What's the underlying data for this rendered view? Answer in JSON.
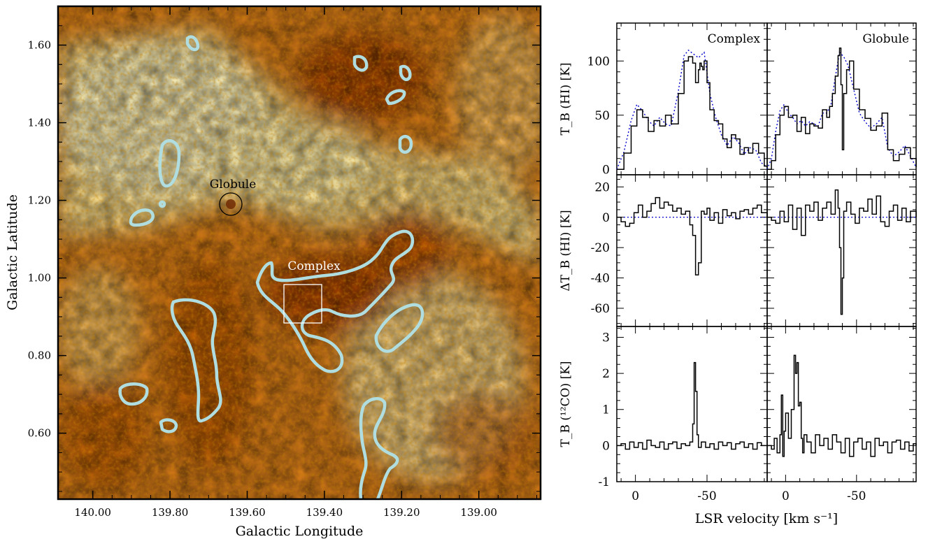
{
  "colors": {
    "map_dark": "#8a3000",
    "map_mid": "#e0801a",
    "map_light": "#fff3b0",
    "contour": "#b0dde0",
    "spectrum_line": "#000000",
    "model_line": "#0000cc"
  },
  "chart_data": [
    {
      "type": "heatmap",
      "title": "",
      "xlabel": "Galactic Longitude",
      "ylabel": "Galactic Latitude",
      "xlim": [
        140.09,
        138.84
      ],
      "ylim": [
        0.43,
        1.7
      ],
      "x_ticks": [
        "140.00",
        "139.80",
        "139.60",
        "139.40",
        "139.20",
        "139.00"
      ],
      "y_ticks": [
        "0.60",
        "0.80",
        "1.00",
        "1.20",
        "1.40",
        "1.60"
      ],
      "colormap": "dark brown (high absorption) to pale yellow (bright HI)",
      "annotations": [
        {
          "label": "Globule",
          "l": 139.64,
          "b": 1.19,
          "marker": "circle"
        },
        {
          "label": "Complex",
          "l": 139.45,
          "b": 0.92,
          "marker": "box",
          "box_l": [
            139.5,
            139.4
          ],
          "box_b": [
            0.83,
            0.98
          ]
        }
      ]
    },
    {
      "type": "line",
      "layout": "3 rows x 2 columns, shared axes",
      "xlabel": "LSR velocity [km s⁻¹]",
      "x_reversed": true,
      "xlim": [
        13,
        -92
      ],
      "x_ticks": [
        "0",
        "-50"
      ],
      "column_titles": [
        "Complex",
        "Globule"
      ],
      "rows": [
        {
          "ylabel": "T_B (HI) [K]",
          "ylim": [
            -5,
            135
          ],
          "y_ticks": [
            "0",
            "50",
            "100"
          ],
          "series_style": [
            "solid black: observed",
            "dotted blue: model"
          ],
          "panels": [
            {
              "column": "Complex",
              "observed": {
                "x": [
                  13,
                  8,
                  3,
                  -1,
                  -5,
                  -9,
                  -13,
                  -17,
                  -21,
                  -25,
                  -30,
                  -34,
                  -37,
                  -40,
                  -42,
                  -44,
                  -45,
                  -46,
                  -47,
                  -48,
                  -50,
                  -52,
                  -55,
                  -58,
                  -61,
                  -64,
                  -67,
                  -70,
                  -73,
                  -76,
                  -79,
                  -82,
                  -86,
                  -90,
                  -92
                ],
                "y": [
                  0,
                  15,
                  40,
                  55,
                  48,
                  35,
                  45,
                  40,
                  50,
                  42,
                  70,
                  100,
                  104,
                  98,
                  80,
                  92,
                  98,
                  95,
                  92,
                  100,
                  80,
                  55,
                  45,
                  42,
                  28,
                  20,
                  32,
                  28,
                  14,
                  20,
                  15,
                  24,
                  15,
                  3,
                  2
                ]
              },
              "model": {
                "x": [
                  13,
                  8,
                  3,
                  -1,
                  -5,
                  -9,
                  -13,
                  -17,
                  -21,
                  -25,
                  -30,
                  -34,
                  -37,
                  -40,
                  -44,
                  -48,
                  -52,
                  -56,
                  -60,
                  -64,
                  -68,
                  -72,
                  -76,
                  -80,
                  -84,
                  -88,
                  -92
                ],
                "y": [
                  0,
                  16,
                  45,
                  60,
                  54,
                  45,
                  40,
                  48,
                  42,
                  40,
                  72,
                  105,
                  110,
                  107,
                  103,
                  108,
                  70,
                  48,
                  32,
                  22,
                  30,
                  25,
                  14,
                  20,
                  18,
                  6,
                  2
                ]
              }
            },
            {
              "column": "Globule",
              "observed": {
                "x": [
                  13,
                  10,
                  7,
                  4,
                  1,
                  -2,
                  -5,
                  -8,
                  -11,
                  -14,
                  -17,
                  -20,
                  -23,
                  -26,
                  -29,
                  -31,
                  -33,
                  -35,
                  -37,
                  -38,
                  -39,
                  -40,
                  -41,
                  -43,
                  -45,
                  -48,
                  -52,
                  -56,
                  -60,
                  -64,
                  -68,
                  -72,
                  -76,
                  -80,
                  -84,
                  -88,
                  -92
                ],
                "y": [
                  0,
                  8,
                  32,
                  50,
                  58,
                  48,
                  50,
                  35,
                  48,
                  33,
                  42,
                  40,
                  38,
                  55,
                  48,
                  58,
                  70,
                  86,
                  105,
                  112,
                  78,
                  18,
                  70,
                  92,
                  100,
                  74,
                  55,
                  47,
                  36,
                  40,
                  52,
                  18,
                  8,
                  14,
                  20,
                  10,
                  2
                ]
              },
              "model": {
                "x": [
                  13,
                  10,
                  7,
                  4,
                  1,
                  -2,
                  -5,
                  -8,
                  -11,
                  -14,
                  -17,
                  -20,
                  -23,
                  -26,
                  -29,
                  -32,
                  -35,
                  -38,
                  -41,
                  -44,
                  -48,
                  -52,
                  -56,
                  -60,
                  -64,
                  -68,
                  -72,
                  -76,
                  -80,
                  -84,
                  -88,
                  -92
                ],
                "y": [
                  0,
                  10,
                  35,
                  54,
                  60,
                  52,
                  48,
                  42,
                  45,
                  40,
                  44,
                  42,
                  40,
                  52,
                  52,
                  60,
                  85,
                  108,
                  104,
                  96,
                  74,
                  52,
                  44,
                  38,
                  42,
                  48,
                  20,
                  12,
                  16,
                  22,
                  12,
                  2
                ]
              }
            }
          ]
        },
        {
          "ylabel": "ΔT_B (HI) [K]",
          "ylim": [
            -72,
            28
          ],
          "y_ticks": [
            "20",
            "0",
            "-20",
            "-40",
            "-60"
          ],
          "reference_line": {
            "y": 0,
            "style": "dotted blue"
          },
          "panels": [
            {
              "column": "Complex",
              "observed": {
                "x": [
                  13,
                  10,
                  7,
                  4,
                  1,
                  -2,
                  -5,
                  -8,
                  -11,
                  -14,
                  -17,
                  -20,
                  -23,
                  -26,
                  -29,
                  -32,
                  -35,
                  -38,
                  -40,
                  -42,
                  -44,
                  -46,
                  -48,
                  -50,
                  -52,
                  -55,
                  -58,
                  -61,
                  -64,
                  -67,
                  -70,
                  -73,
                  -76,
                  -79,
                  -82,
                  -85,
                  -88,
                  -92
                ],
                "y": [
                  0,
                  -3,
                  -6,
                  -4,
                  3,
                  8,
                  0,
                  4,
                  9,
                  13,
                  6,
                  10,
                  8,
                  4,
                  6,
                  2,
                  4,
                  -5,
                  -12,
                  -38,
                  -30,
                  4,
                  2,
                  6,
                  -2,
                  3,
                  -4,
                  5,
                  1,
                  3,
                  -1,
                  4,
                  5,
                  2,
                  6,
                  8,
                  3,
                  0
                ]
              }
            },
            {
              "column": "Globule",
              "observed": {
                "x": [
                  13,
                  10,
                  7,
                  4,
                  1,
                  -2,
                  -5,
                  -8,
                  -11,
                  -14,
                  -17,
                  -20,
                  -23,
                  -26,
                  -29,
                  -32,
                  -35,
                  -37,
                  -38,
                  -39,
                  -40,
                  -41,
                  -43,
                  -46,
                  -49,
                  -52,
                  -55,
                  -58,
                  -61,
                  -64,
                  -67,
                  -70,
                  -73,
                  -76,
                  -79,
                  -82,
                  -85,
                  -88,
                  -92
                ],
                "y": [
                  0,
                  -2,
                  -4,
                  4,
                  -3,
                  8,
                  -8,
                  6,
                  -12,
                  8,
                  4,
                  10,
                  -2,
                  6,
                  10,
                  2,
                  18,
                  6,
                  -20,
                  -64,
                  -40,
                  4,
                  10,
                  2,
                  -4,
                  6,
                  4,
                  12,
                  2,
                  14,
                  -3,
                  -6,
                  4,
                  8,
                  -2,
                  6,
                  -3,
                  4,
                  0
                ]
              }
            }
          ]
        },
        {
          "ylabel": "T_B (¹²CO) [K]",
          "ylim": [
            -1,
            3.3
          ],
          "y_ticks": [
            "3",
            "2",
            "1",
            "0",
            "-1"
          ],
          "panels": [
            {
              "column": "Complex",
              "observed": {
                "x": [
                  13,
                  10,
                  7,
                  4,
                  1,
                  -2,
                  -5,
                  -8,
                  -11,
                  -14,
                  -17,
                  -20,
                  -23,
                  -26,
                  -29,
                  -32,
                  -35,
                  -38,
                  -40,
                  -41,
                  -42,
                  -43,
                  -44,
                  -46,
                  -49,
                  -52,
                  -55,
                  -58,
                  -61,
                  -64,
                  -67,
                  -70,
                  -73,
                  -76,
                  -79,
                  -82,
                  -85,
                  -88,
                  -92
                ],
                "y": [
                  0,
                  0.05,
                  -0.1,
                  0.1,
                  -0.05,
                  0.08,
                  -0.1,
                  0.15,
                  0,
                  -0.05,
                  0.1,
                  -0.1,
                  0.05,
                  0.1,
                  -0.08,
                  0.05,
                  0,
                  0.1,
                  0.6,
                  2.3,
                  1.5,
                  0.3,
                  -0.05,
                  0.1,
                  -0.05,
                  0.05,
                  -0.1,
                  0.1,
                  0,
                  0.08,
                  -0.1,
                  0.05,
                  0.1,
                  -0.05,
                  0.05,
                  -0.1,
                  0.08,
                  0,
                  0
                ]
              }
            },
            {
              "column": "Globule",
              "observed": {
                "x": [
                  13,
                  10,
                  8,
                  6,
                  4,
                  3,
                  2,
                  1,
                  0,
                  -2,
                  -4,
                  -6,
                  -7,
                  -8,
                  -9,
                  -10,
                  -11,
                  -12,
                  -13,
                  -15,
                  -18,
                  -21,
                  -24,
                  -27,
                  -30,
                  -33,
                  -36,
                  -39,
                  -42,
                  -45,
                  -48,
                  -51,
                  -54,
                  -57,
                  -60,
                  -63,
                  -66,
                  -69,
                  -72,
                  -75,
                  -78,
                  -81,
                  -84,
                  -87,
                  -90,
                  -92
                ],
                "y": [
                  0,
                  -0.1,
                  0.2,
                  -0.2,
                  0.3,
                  1.4,
                  -0.3,
                  0.4,
                  0.9,
                  0.2,
                  1.0,
                  2.5,
                  2.0,
                  2.3,
                  1.1,
                  1.2,
                  0.2,
                  -0.2,
                  0.3,
                  0.1,
                  -0.2,
                  0.3,
                  0,
                  0.2,
                  -0.1,
                  0.3,
                  0.1,
                  -0.2,
                  0.2,
                  -0.3,
                  0.1,
                  0.2,
                  -0.1,
                  0.1,
                  -0.3,
                  0.2,
                  0,
                  0.1,
                  -0.2,
                  0.1,
                  0.15,
                  -0.1,
                  0.1,
                  -0.15,
                  0.05,
                  0
                ]
              }
            }
          ]
        }
      ]
    }
  ]
}
